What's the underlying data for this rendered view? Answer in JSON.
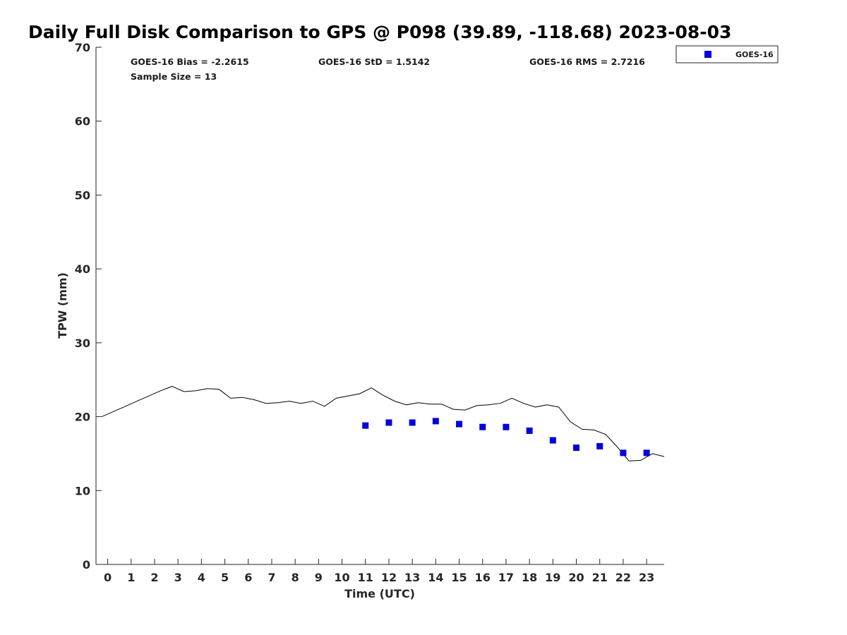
{
  "chart_data": {
    "type": "scatter",
    "title": "Daily Full Disk Comparison to GPS @ P098 (39.89, -118.68) 2023-08-03",
    "xlabel": "Time (UTC)",
    "ylabel": "TPW (mm)",
    "xlim": [
      -0.5,
      23.75
    ],
    "ylim": [
      0,
      70
    ],
    "x_ticks": [
      0,
      1,
      2,
      3,
      4,
      5,
      6,
      7,
      8,
      9,
      10,
      11,
      12,
      13,
      14,
      15,
      16,
      17,
      18,
      19,
      20,
      21,
      22,
      23
    ],
    "y_ticks": [
      0,
      10,
      20,
      30,
      40,
      50,
      60,
      70
    ],
    "grid": false,
    "legend_position": "top-right outside",
    "stats": {
      "bias": "GOES-16 Bias = -2.2615",
      "std": "GOES-16 StD = 1.5142",
      "rms": "GOES-16 RMS = 2.7216",
      "sample_size": "Sample Size = 13"
    },
    "series": [
      {
        "name": "GOES-16",
        "kind": "scatter",
        "marker": "square",
        "color": "#0000dd",
        "x": [
          11,
          12,
          13,
          14,
          15,
          16,
          17,
          18,
          19,
          20,
          21,
          22,
          23
        ],
        "y": [
          18.8,
          19.2,
          19.2,
          19.4,
          19.0,
          18.6,
          18.6,
          18.1,
          16.8,
          15.8,
          16.0,
          15.1,
          15.1
        ]
      },
      {
        "kind": "line",
        "color": "#000000",
        "x": [
          -0.25,
          0.25,
          0.75,
          1.25,
          1.75,
          2.25,
          2.75,
          3.25,
          3.75,
          4.25,
          4.75,
          5.25,
          5.75,
          6.25,
          6.75,
          7.25,
          7.75,
          8.25,
          8.75,
          9.25,
          9.75,
          10.25,
          10.75,
          11.25,
          11.75,
          12.25,
          12.75,
          13.25,
          13.75,
          14.25,
          14.75,
          15.25,
          15.75,
          16.25,
          16.75,
          17.25,
          17.75,
          18.25,
          18.75,
          19.25,
          19.75,
          20.25,
          20.75,
          21.25,
          21.75,
          22.25,
          22.75,
          23.25,
          23.75
        ],
        "y": [
          20.0,
          20.7,
          21.4,
          22.1,
          22.8,
          23.5,
          24.1,
          23.4,
          23.5,
          23.8,
          23.7,
          22.5,
          22.6,
          22.3,
          21.8,
          21.9,
          22.1,
          21.8,
          22.1,
          21.4,
          22.5,
          22.8,
          23.1,
          23.9,
          22.9,
          22.1,
          21.6,
          21.9,
          21.7,
          21.7,
          21.0,
          20.9,
          21.5,
          21.6,
          21.8,
          22.5,
          21.8,
          21.3,
          21.6,
          21.3,
          19.3,
          18.3,
          18.2,
          17.6,
          15.9,
          14.0,
          14.1,
          15.0,
          14.6
        ]
      }
    ]
  }
}
